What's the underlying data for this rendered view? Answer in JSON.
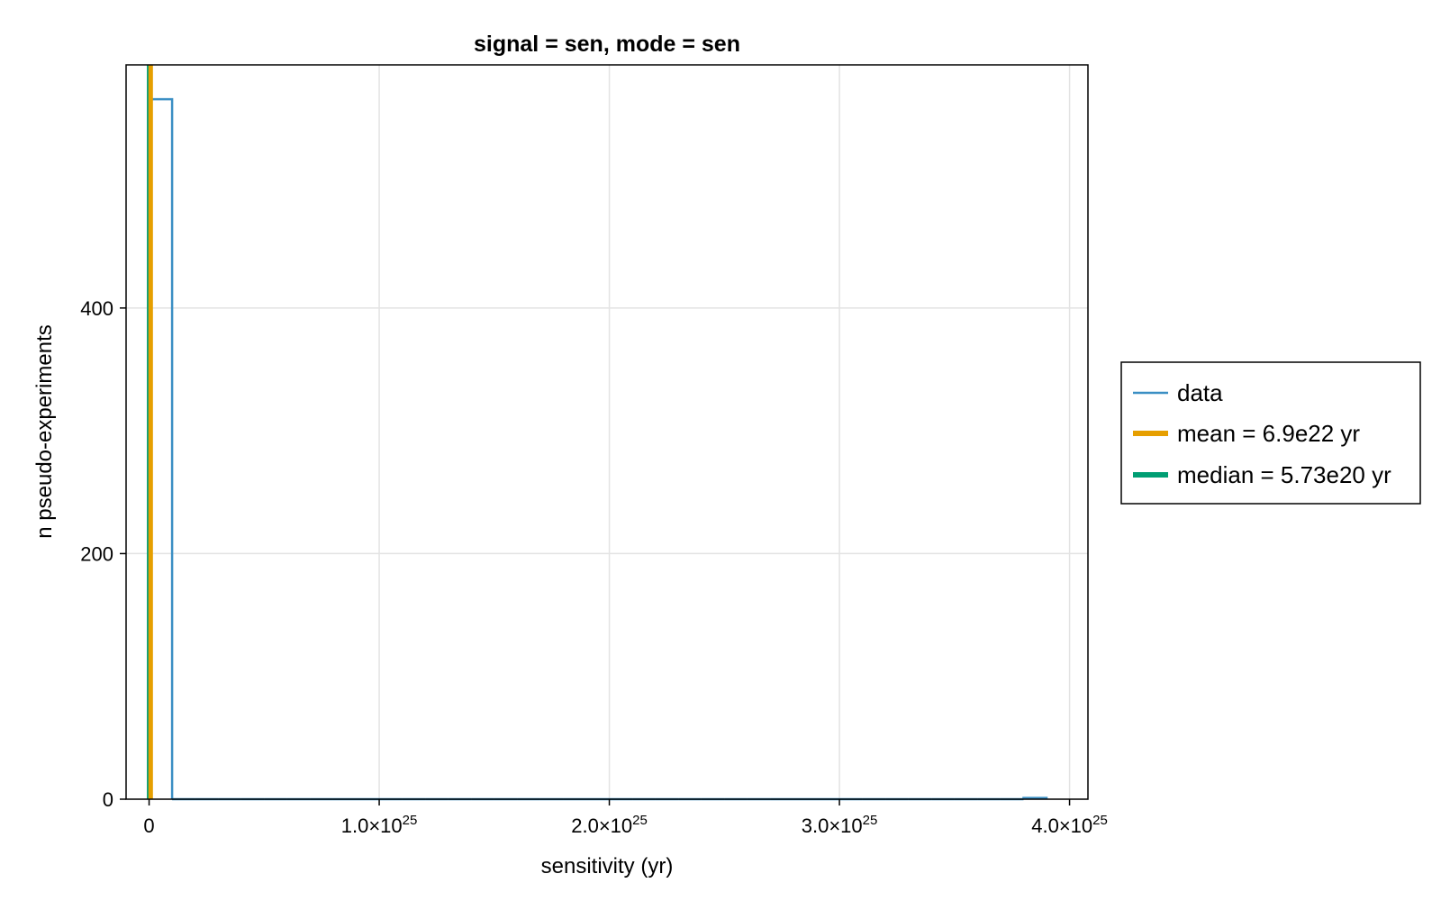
{
  "chart_data": {
    "type": "histogram",
    "title": "signal = sen, mode = sen",
    "xlabel": "sensitivity (yr)",
    "ylabel": "n pseudo-experiments",
    "xlim": [
      -1e+24,
      4.08e+25
    ],
    "ylim": [
      0,
      598
    ],
    "x_ticks": [
      {
        "value": 0,
        "mantissa": "0",
        "exponent": ""
      },
      {
        "value": 1e+25,
        "mantissa": "1.0×10",
        "exponent": "25"
      },
      {
        "value": 2e+25,
        "mantissa": "2.0×10",
        "exponent": "25"
      },
      {
        "value": 3e+25,
        "mantissa": "3.0×10",
        "exponent": "25"
      },
      {
        "value": 4e+25,
        "mantissa": "4.0×10",
        "exponent": "25"
      }
    ],
    "y_ticks": [
      0,
      200,
      400
    ],
    "grid": true,
    "bin_edges": [
      0,
      1e+24,
      2e+24,
      3e+24,
      4e+24,
      5e+24,
      6e+24,
      7e+24,
      8e+24,
      9e+24,
      1e+25,
      1.1e+25,
      1.2e+25,
      1.3e+25,
      1.4e+25,
      1.5e+25,
      1.6e+25,
      1.7e+25,
      1.8e+25,
      1.9e+25,
      2e+25,
      2.1e+25,
      2.2e+25,
      2.3e+25,
      2.4e+25,
      2.5e+25,
      2.6e+25,
      2.7e+25,
      2.8e+25,
      2.9e+25,
      3e+25,
      3.1e+25,
      3.2e+25,
      3.3e+25,
      3.4e+25,
      3.5e+25,
      3.6e+25,
      3.7e+25,
      3.8e+25,
      3.9e+25
    ],
    "counts": [
      570,
      0,
      0,
      0,
      0,
      0,
      0,
      0,
      0,
      0,
      0,
      0,
      0,
      0,
      0,
      0,
      0,
      0,
      0,
      0,
      0,
      0,
      0,
      0,
      0,
      0,
      0,
      0,
      0,
      0,
      0,
      0,
      0,
      0,
      0,
      0,
      0,
      0,
      1
    ],
    "series": [
      {
        "name": "data",
        "kind": "histogram-step",
        "color": "#3b8fc4"
      },
      {
        "name": "mean = 6.9e22 yr",
        "kind": "vline",
        "x": 6.9e+22,
        "color": "#e69f00"
      },
      {
        "name": "median = 5.73e20 yr",
        "kind": "vline",
        "x": 5.73e+20,
        "color": "#009e73"
      }
    ],
    "legend_position": "right"
  }
}
